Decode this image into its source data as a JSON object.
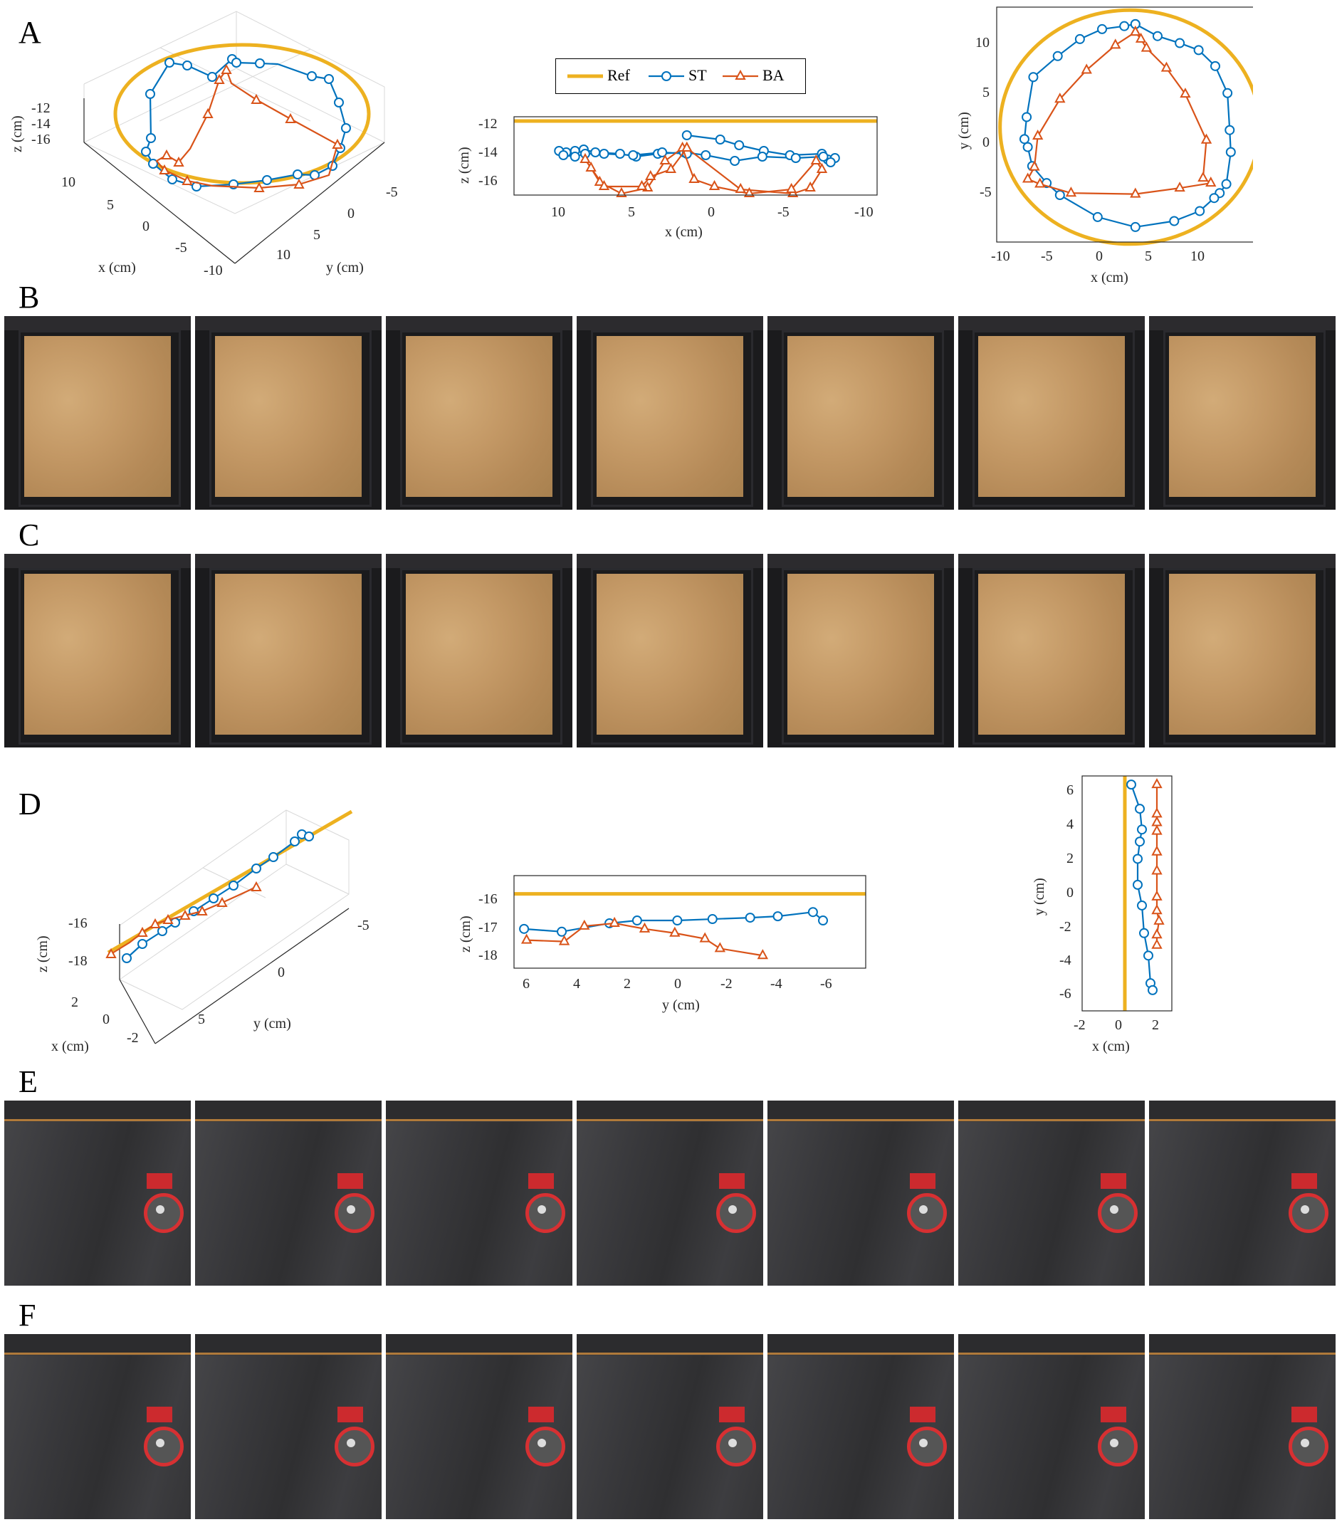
{
  "panels": {
    "A": "A",
    "B": "B",
    "C": "C",
    "D": "D",
    "E": "E",
    "F": "F"
  },
  "legend": {
    "ref": "Ref",
    "st": "ST",
    "ba": "BA"
  },
  "colors": {
    "ref": "#EDB120",
    "st": "#0072BD",
    "ba": "#D95319"
  },
  "chart_data": [
    {
      "id": "A-3d",
      "type": "line",
      "projection": "3d",
      "xlabel": "x (cm)",
      "ylabel": "y (cm)",
      "zlabel": "z (cm)",
      "x_ticks": [
        "10",
        "5",
        "0",
        "-5",
        "-10"
      ],
      "y_ticks": [
        "-5",
        "0",
        "5",
        "10"
      ],
      "z_ticks": [
        "-12",
        "-14",
        "-16"
      ],
      "series": [
        {
          "name": "Ref"
        },
        {
          "name": "ST"
        },
        {
          "name": "BA"
        }
      ]
    },
    {
      "id": "A-xz",
      "type": "line",
      "xlabel": "x (cm)",
      "ylabel": "z (cm)",
      "xlim": [
        14,
        -11
      ],
      "ylim": [
        -17,
        -11.5
      ],
      "x_ticks": [
        "10",
        "5",
        "0",
        "-5",
        "-10"
      ],
      "y_ticks": [
        "-12",
        "-14",
        "-16"
      ],
      "series": [
        {
          "name": "Ref",
          "x": [
            14,
            -11
          ],
          "y": [
            -11.8,
            -11.8
          ]
        },
        {
          "name": "ST",
          "x": [
            2.1,
            -0.2,
            -1.5,
            -3.2,
            -5,
            -7.2,
            -7.6,
            -8.1,
            -7.8,
            -7.3,
            -5.4,
            -3.1,
            -1.2,
            0.8,
            2.3,
            4.1,
            5.6,
            6.7,
            8.4,
            9.2,
            9.8,
            10.4,
            10.9,
            10.6,
            9.8,
            9.1,
            7.8,
            5.8,
            3.8,
            2.1
          ],
          "y": [
            -12.8,
            -13.1,
            -13.5,
            -13.9,
            -14.2,
            -14.1,
            -14.5,
            -14.4,
            -14.7,
            -14.3,
            -14.4,
            -14.3,
            -14.6,
            -14.2,
            -14.0,
            -14.1,
            -14.3,
            -14.1,
            -14.0,
            -13.8,
            -13.9,
            -14.0,
            -13.9,
            -14.2,
            -14.3,
            -14.1,
            -14.1,
            -14.2,
            -14.0,
            -14.1
          ],
          "marker": "circle"
        },
        {
          "name": "BA",
          "x": [
            2.1,
            -1.6,
            -5.2,
            -6.4,
            -7.2,
            -6.8,
            -5.1,
            -2.2,
            0.2,
            1.6,
            2.4,
            3.6,
            4.8,
            6.6,
            8.1,
            8.7,
            9.1,
            7.8,
            5.2,
            4.6,
            3.2,
            2.1
          ],
          "y": [
            -13.7,
            -16.6,
            -16.9,
            -16.5,
            -15.2,
            -14.6,
            -16.6,
            -16.9,
            -16.4,
            -15.9,
            -13.7,
            -14.6,
            -16.5,
            -16.9,
            -16.1,
            -15.1,
            -14.5,
            -16.4,
            -16.4,
            -15.7,
            -15.2,
            -13.7
          ],
          "marker": "triangle"
        }
      ]
    },
    {
      "id": "A-xy",
      "type": "line",
      "xlabel": "x (cm)",
      "ylabel": "y (cm)",
      "xlim": [
        -10.5,
        13.5
      ],
      "ylim": [
        -10,
        13.5
      ],
      "x_ticks": [
        "-10",
        "-5",
        "0",
        "5",
        "10"
      ],
      "y_ticks": [
        "-5",
        "0",
        "5",
        "10"
      ],
      "series": [
        {
          "name": "Ref",
          "shape": "circle",
          "center": [
            1.5,
            1.5
          ],
          "radius": 11.7
        },
        {
          "name": "ST",
          "x": [
            2,
            4,
            6,
            7.7,
            9.2,
            10.3,
            10.5,
            10.6,
            10.2,
            9.6,
            9.1,
            7.8,
            5.5,
            2,
            -1.4,
            -4.8,
            -6,
            -7.3,
            -7.7,
            -8,
            -7.8,
            -7.2,
            -5,
            -3,
            -1,
            1,
            2
          ],
          "y": [
            11.8,
            10.6,
            9.9,
            9.2,
            7.6,
            4.9,
            1.2,
            -1.0,
            -4.2,
            -5.1,
            -5.6,
            -6.9,
            -7.9,
            -8.5,
            -7.5,
            -5.3,
            -4.1,
            -2.4,
            -0.5,
            0.3,
            2.5,
            6.5,
            8.6,
            10.3,
            11.3,
            11.6,
            11.8
          ],
          "marker": "circle"
        },
        {
          "name": "BA",
          "x": [
            2,
            2.5,
            3,
            4.8,
            6.5,
            8.4,
            8.1,
            8.8,
            6,
            2,
            -3.8,
            -6.6,
            -7.7,
            -7.1,
            -6.8,
            -4.8,
            -2.4,
            0.2,
            2
          ],
          "y": [
            11,
            10.3,
            9.4,
            7.4,
            4.8,
            0.2,
            -3.6,
            -4.1,
            -4.6,
            -5.2,
            -5.1,
            -4.2,
            -3.7,
            -2.5,
            0.6,
            4.3,
            7.2,
            9.7,
            11
          ]
        }
      ]
    },
    {
      "id": "D-3d",
      "type": "line",
      "projection": "3d",
      "xlabel": "x (cm)",
      "ylabel": "y (cm)",
      "zlabel": "z (cm)",
      "x_ticks": [
        "2",
        "0",
        "-2"
      ],
      "y_ticks": [
        "-5",
        "0",
        "5"
      ],
      "z_ticks": [
        "-16",
        "-18"
      ],
      "series": [
        {
          "name": "Ref"
        },
        {
          "name": "ST"
        },
        {
          "name": "BA"
        }
      ]
    },
    {
      "id": "D-yz",
      "type": "line",
      "xlabel": "y (cm)",
      "ylabel": "z (cm)",
      "xlim": [
        7,
        -7
      ],
      "ylim": [
        -18.6,
        -15.3
      ],
      "x_ticks": [
        "6",
        "4",
        "2",
        "0",
        "-2",
        "-4",
        "-6"
      ],
      "y_ticks": [
        "-16",
        "-17",
        "-18"
      ],
      "series": [
        {
          "name": "Ref",
          "x": [
            7,
            -7
          ],
          "y": [
            -15.95,
            -15.95
          ]
        },
        {
          "name": "ST",
          "x": [
            6.6,
            5.1,
            3.2,
            2.1,
            0.5,
            -0.9,
            -2.4,
            -3.5,
            -4.9,
            -5.3
          ],
          "y": [
            -17.2,
            -17.3,
            -17.0,
            -16.9,
            -16.9,
            -16.85,
            -16.8,
            -16.75,
            -16.6,
            -16.9
          ],
          "marker": "circle"
        },
        {
          "name": "BA",
          "x": [
            6.5,
            5,
            4.2,
            3,
            1.8,
            0.6,
            -0.6,
            -1.2,
            -2.9
          ],
          "y": [
            -17.6,
            -17.65,
            -17.1,
            -17.0,
            -17.2,
            -17.35,
            -17.55,
            -17.9,
            -18.15
          ],
          "marker": "triangle"
        }
      ]
    },
    {
      "id": "D-xy",
      "type": "line",
      "xlabel": "x (cm)",
      "ylabel": "y (cm)",
      "xlim": [
        -2,
        2.2
      ],
      "ylim": [
        -6.6,
        7
      ],
      "x_ticks": [
        "-2",
        "0",
        "2"
      ],
      "y_ticks": [
        "6",
        "4",
        "2",
        "0",
        "-2",
        "-4",
        "-6"
      ],
      "series": [
        {
          "name": "Ref",
          "x": [
            0,
            0
          ],
          "y": [
            -6.6,
            7
          ]
        },
        {
          "name": "ST",
          "x": [
            0.3,
            0.7,
            0.8,
            0.7,
            0.6,
            0.6,
            0.8,
            0.9,
            1.1,
            1.2,
            1.3
          ],
          "y": [
            6.5,
            5.1,
            3.9,
            3.2,
            2.2,
            0.7,
            -0.5,
            -2.1,
            -3.4,
            -5.0,
            -5.4
          ],
          "marker": "circle"
        },
        {
          "name": "BA",
          "x": [
            1.5,
            1.5,
            1.5,
            1.5,
            1.5,
            1.5,
            1.5,
            1.5,
            1.6,
            1.5,
            1.5
          ],
          "y": [
            6.5,
            4.8,
            4.3,
            3.8,
            2.6,
            1.5,
            0.0,
            -0.8,
            -1.4,
            -2.2,
            -2.8
          ],
          "marker": "triangle"
        }
      ]
    }
  ]
}
